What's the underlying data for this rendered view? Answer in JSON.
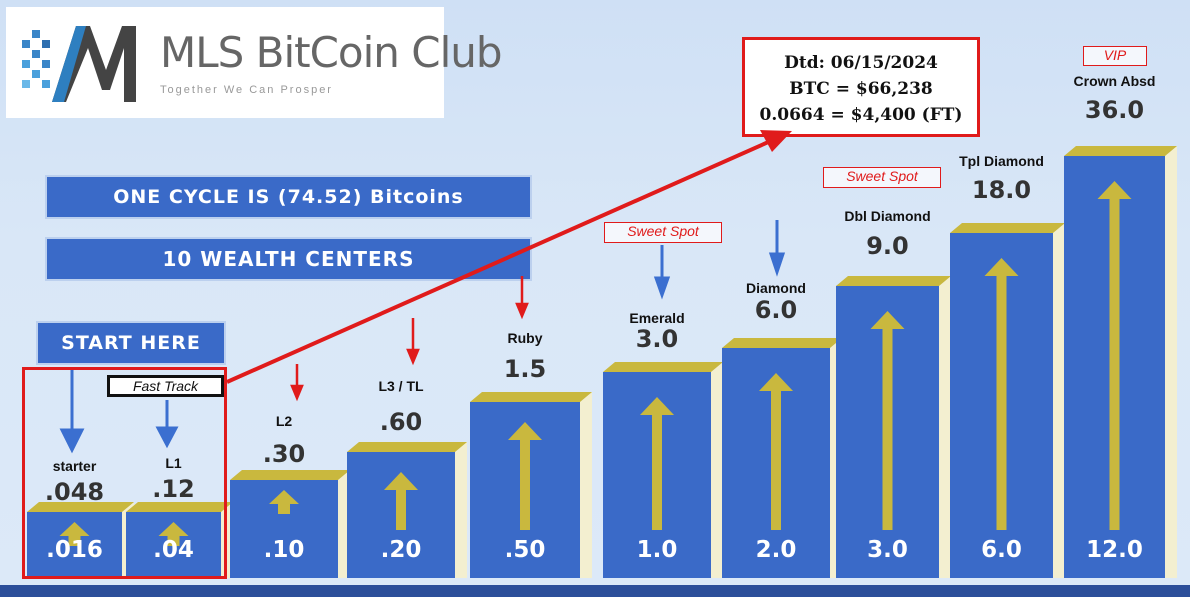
{
  "logo": {
    "title": "MLS BitCoin Club",
    "tagline": "Together We Can Prosper",
    "icon": "mls-logo-icon"
  },
  "info": {
    "date": "Dtd: 06/15/2024",
    "btc": "BTC = $66,238",
    "ft": "0.0664 = $4,400 (FT)"
  },
  "banners": {
    "cycle": "ONE CYCLE IS (74.52)  Bitcoins",
    "centers": "10 WEALTH CENTERS",
    "start": "START HERE"
  },
  "tags": {
    "fast_track": "Fast Track",
    "sweet_spot": "Sweet Spot",
    "vip": "VIP"
  },
  "levels": [
    {
      "name": "starter",
      "top": ".048",
      "base": ".016"
    },
    {
      "name": "L1",
      "top": ".12",
      "base": ".04"
    },
    {
      "name": "L2",
      "top": ".30",
      "base": ".10"
    },
    {
      "name": "L3 / TL",
      "top": ".60",
      "base": ".20"
    },
    {
      "name": "Ruby",
      "top": "1.5",
      "base": ".50"
    },
    {
      "name": "Emerald",
      "top": "3.0",
      "base": "1.0"
    },
    {
      "name": "Diamond",
      "top": "6.0",
      "base": "2.0"
    },
    {
      "name": "Dbl Diamond",
      "top": "9.0",
      "base": "3.0"
    },
    {
      "name": "Tpl Diamond",
      "top": "18.0",
      "base": "6.0"
    },
    {
      "name": "Crown Absd",
      "top": "36.0",
      "base": "12.0"
    }
  ],
  "colors": {
    "column": "#3a6ac8",
    "cap": "#c9b83e",
    "red": "#e01b1b",
    "blue_arrow": "#3b6fd0"
  }
}
